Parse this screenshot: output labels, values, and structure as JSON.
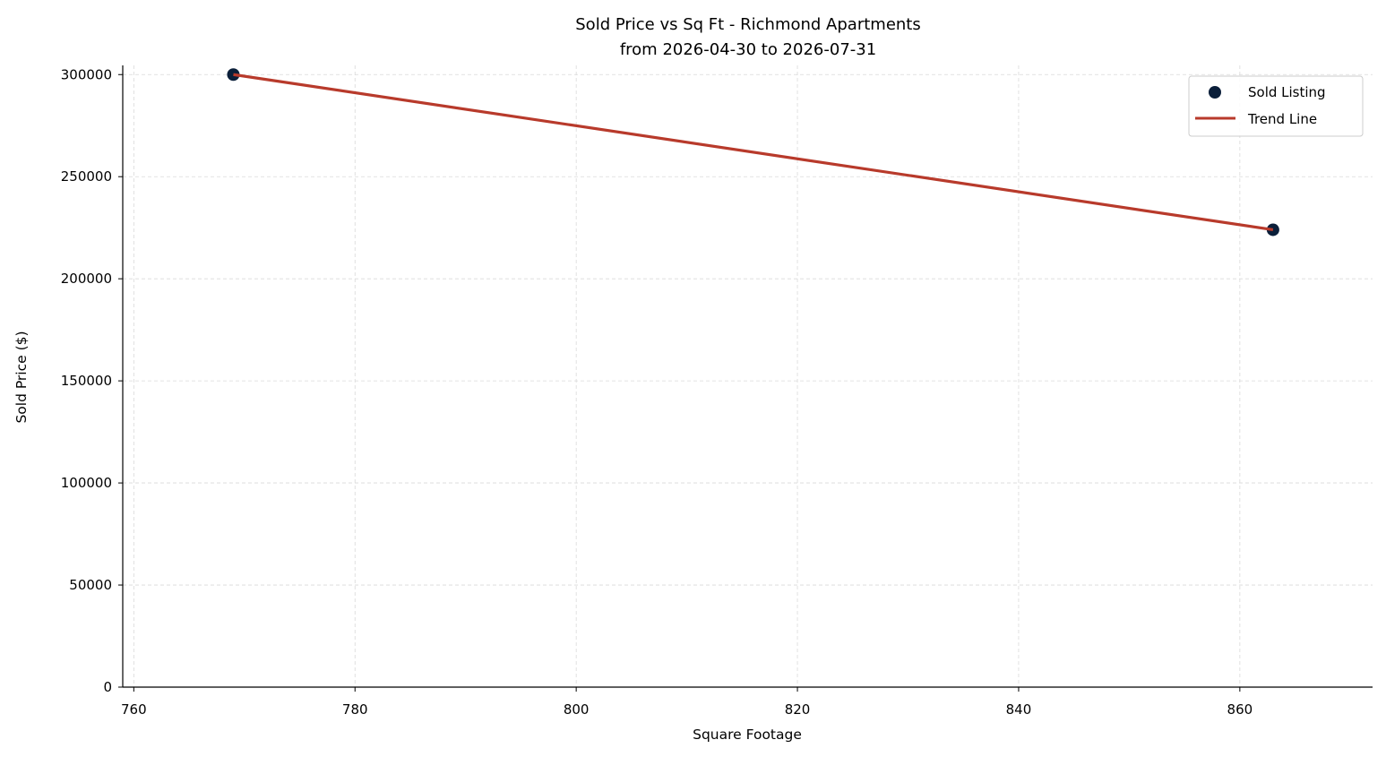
{
  "chart_data": {
    "type": "scatter",
    "title": "Sold Price vs Sq Ft - Richmond Apartments",
    "subtitle": "from 2026-04-30 to 2026-07-31",
    "xlabel": "Square Footage",
    "ylabel": "Sold Price ($)",
    "xlim": [
      759,
      872
    ],
    "ylim": [
      0,
      304500
    ],
    "x_ticks": [
      "760",
      "780",
      "800",
      "820",
      "840",
      "860"
    ],
    "x_tick_values": [
      760,
      780,
      800,
      820,
      840,
      860
    ],
    "y_ticks": [
      "0",
      "50000",
      "100000",
      "150000",
      "200000",
      "250000",
      "300000"
    ],
    "y_tick_values": [
      0,
      50000,
      100000,
      150000,
      200000,
      250000,
      300000
    ],
    "grid": true,
    "legend_position": "top-right",
    "series": [
      {
        "name": "Sold Listing",
        "kind": "scatter",
        "color": "#0b1f3a",
        "points": [
          {
            "x": 769,
            "y": 300000
          },
          {
            "x": 863,
            "y": 224000
          }
        ]
      },
      {
        "name": "Trend Line",
        "kind": "line",
        "color": "#b83a2b",
        "points": [
          {
            "x": 769,
            "y": 300000
          },
          {
            "x": 863,
            "y": 224000
          }
        ]
      }
    ]
  }
}
